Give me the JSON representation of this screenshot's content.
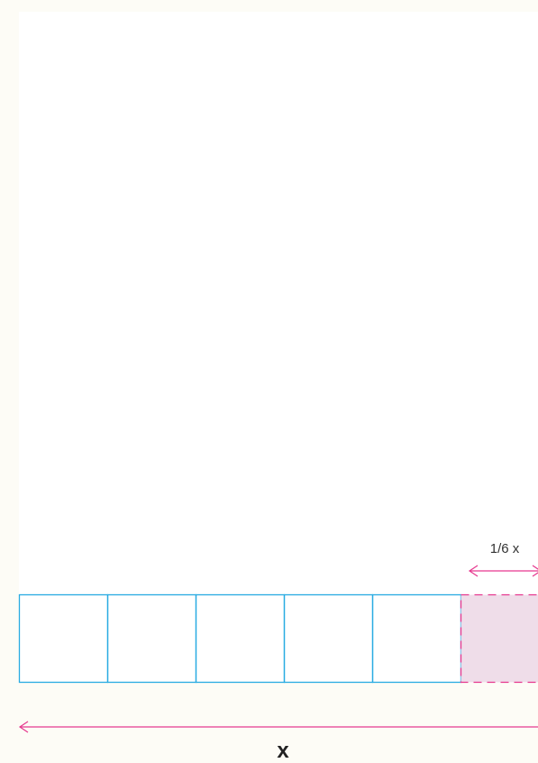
{
  "labels": {
    "fraction": "1/6 x",
    "total": "x"
  }
}
